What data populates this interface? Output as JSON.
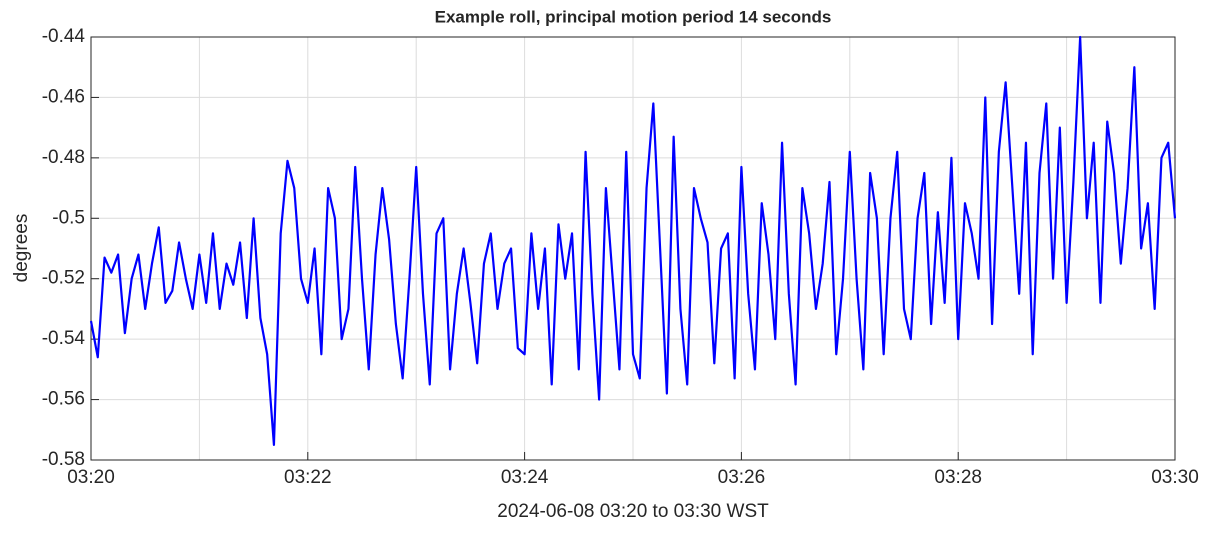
{
  "chart_data": {
    "type": "line",
    "title": "Example roll, principal motion period 14 seconds",
    "xlabel": "2024-06-08 03:20 to 03:30 WST",
    "ylabel": "degrees",
    "xlim": [
      20,
      30
    ],
    "xticks": [
      {
        "value": 20,
        "label": "03:20"
      },
      {
        "value": 22,
        "label": "03:22"
      },
      {
        "value": 24,
        "label": "03:24"
      },
      {
        "value": 26,
        "label": "03:26"
      },
      {
        "value": 28,
        "label": "03:28"
      },
      {
        "value": 30,
        "label": "03:30"
      }
    ],
    "xminor_grid": [
      21,
      23,
      25,
      27,
      29
    ],
    "ylim": [
      -0.58,
      -0.44
    ],
    "yticks": [
      -0.58,
      -0.56,
      -0.54,
      -0.52,
      -0.5,
      -0.48,
      -0.46,
      -0.44
    ],
    "grid": true,
    "series": [
      {
        "name": "roll",
        "color": "#0000ff",
        "x": [
          20,
          20.0625,
          20.125,
          20.1875,
          20.25,
          20.3125,
          20.375,
          20.4375,
          20.5,
          20.5625,
          20.625,
          20.6875,
          20.75,
          20.8125,
          20.875,
          20.9375,
          21,
          21.0625,
          21.125,
          21.1875,
          21.25,
          21.3125,
          21.375,
          21.4375,
          21.5,
          21.5625,
          21.625,
          21.6875,
          21.75,
          21.8125,
          21.875,
          21.9375,
          22,
          22.0625,
          22.125,
          22.1875,
          22.25,
          22.3125,
          22.375,
          22.4375,
          22.5,
          22.5625,
          22.625,
          22.6875,
          22.75,
          22.8125,
          22.875,
          22.9375,
          23,
          23.0625,
          23.125,
          23.1875,
          23.25,
          23.3125,
          23.375,
          23.4375,
          23.5,
          23.5625,
          23.625,
          23.6875,
          23.75,
          23.8125,
          23.875,
          23.9375,
          24,
          24.0625,
          24.125,
          24.1875,
          24.25,
          24.3125,
          24.375,
          24.4375,
          24.5,
          24.5625,
          24.625,
          24.6875,
          24.75,
          24.8125,
          24.875,
          24.9375,
          25,
          25.0625,
          25.125,
          25.1875,
          25.25,
          25.3125,
          25.375,
          25.4375,
          25.5,
          25.5625,
          25.625,
          25.6875,
          25.75,
          25.8125,
          25.875,
          25.9375,
          26,
          26.0625,
          26.125,
          26.1875,
          26.25,
          26.3125,
          26.375,
          26.4375,
          26.5,
          26.5625,
          26.625,
          26.6875,
          26.75,
          26.8125,
          26.875,
          26.9375,
          27,
          27.0625,
          27.125,
          27.1875,
          27.25,
          27.3125,
          27.375,
          27.4375,
          27.5,
          27.5625,
          27.625,
          27.6875,
          27.75,
          27.8125,
          27.875,
          27.9375,
          28,
          28.0625,
          28.125,
          28.1875,
          28.25,
          28.3125,
          28.375,
          28.4375,
          28.5,
          28.5625,
          28.625,
          28.6875,
          28.75,
          28.8125,
          28.875,
          28.9375,
          29,
          29.0625,
          29.125,
          29.1875,
          29.25,
          29.3125,
          29.375,
          29.4375,
          29.5,
          29.5625,
          29.625,
          29.6875,
          29.75,
          29.8125,
          29.875,
          29.9375,
          30
        ],
        "values": [
          -0.534,
          -0.546,
          -0.513,
          -0.518,
          -0.512,
          -0.538,
          -0.52,
          -0.512,
          -0.53,
          -0.515,
          -0.503,
          -0.528,
          -0.524,
          -0.508,
          -0.52,
          -0.53,
          -0.512,
          -0.528,
          -0.505,
          -0.53,
          -0.515,
          -0.522,
          -0.508,
          -0.533,
          -0.5,
          -0.533,
          -0.545,
          -0.575,
          -0.505,
          -0.481,
          -0.49,
          -0.52,
          -0.528,
          -0.51,
          -0.545,
          -0.49,
          -0.5,
          -0.54,
          -0.53,
          -0.483,
          -0.52,
          -0.55,
          -0.512,
          -0.49,
          -0.507,
          -0.535,
          -0.553,
          -0.52,
          -0.483,
          -0.525,
          -0.555,
          -0.505,
          -0.5,
          -0.55,
          -0.525,
          -0.51,
          -0.528,
          -0.548,
          -0.515,
          -0.505,
          -0.53,
          -0.515,
          -0.51,
          -0.543,
          -0.545,
          -0.505,
          -0.53,
          -0.51,
          -0.555,
          -0.502,
          -0.52,
          -0.505,
          -0.55,
          -0.478,
          -0.525,
          -0.56,
          -0.49,
          -0.52,
          -0.55,
          -0.478,
          -0.545,
          -0.553,
          -0.49,
          -0.462,
          -0.51,
          -0.558,
          -0.473,
          -0.53,
          -0.555,
          -0.49,
          -0.5,
          -0.508,
          -0.548,
          -0.51,
          -0.505,
          -0.553,
          -0.483,
          -0.525,
          -0.55,
          -0.495,
          -0.512,
          -0.54,
          -0.475,
          -0.525,
          -0.555,
          -0.49,
          -0.505,
          -0.53,
          -0.515,
          -0.488,
          -0.545,
          -0.52,
          -0.478,
          -0.52,
          -0.55,
          -0.485,
          -0.5,
          -0.545,
          -0.5,
          -0.478,
          -0.53,
          -0.54,
          -0.5,
          -0.485,
          -0.535,
          -0.498,
          -0.528,
          -0.48,
          -0.54,
          -0.495,
          -0.505,
          -0.52,
          -0.46,
          -0.535,
          -0.478,
          -0.455,
          -0.49,
          -0.525,
          -0.475,
          -0.545,
          -0.485,
          -0.462,
          -0.52,
          -0.47,
          -0.528,
          -0.488,
          -0.44,
          -0.5,
          -0.475,
          -0.528,
          -0.468,
          -0.485,
          -0.515,
          -0.49,
          -0.45,
          -0.51,
          -0.495,
          -0.53,
          -0.48,
          -0.475,
          -0.5
        ]
      }
    ]
  }
}
